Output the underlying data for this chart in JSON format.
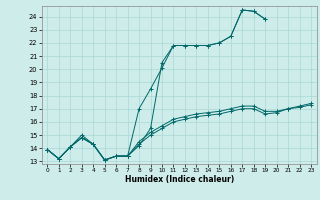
{
  "xlabel": "Humidex (Indice chaleur)",
  "bg_color": "#ceecea",
  "grid_color": "#aad8d5",
  "line_color": "#006868",
  "xlim": [
    -0.5,
    23.5
  ],
  "ylim": [
    12.8,
    24.8
  ],
  "yticks": [
    13,
    14,
    15,
    16,
    17,
    18,
    19,
    20,
    21,
    22,
    23,
    24
  ],
  "xticks": [
    0,
    1,
    2,
    3,
    4,
    5,
    6,
    7,
    8,
    9,
    10,
    11,
    12,
    13,
    14,
    15,
    16,
    17,
    18,
    19,
    20,
    21,
    22,
    23
  ],
  "series": [
    {
      "x": [
        0,
        1,
        2,
        3,
        4,
        5,
        6,
        7,
        8,
        9,
        10,
        11,
        12,
        13,
        14,
        15,
        16,
        17,
        18,
        19,
        20,
        21,
        22,
        23
      ],
      "y": [
        13.9,
        13.2,
        14.1,
        14.8,
        14.3,
        13.1,
        13.4,
        13.4,
        14.3,
        15.0,
        15.5,
        16.0,
        16.2,
        16.4,
        16.5,
        16.6,
        16.8,
        17.0,
        17.0,
        16.6,
        16.7,
        17.0,
        17.1,
        17.3
      ]
    },
    {
      "x": [
        0,
        1,
        2,
        3,
        4,
        5,
        6,
        7,
        8,
        9,
        10,
        11,
        12,
        13,
        14,
        15,
        16,
        17,
        18,
        19,
        20,
        21,
        22,
        23
      ],
      "y": [
        13.9,
        13.2,
        14.1,
        14.8,
        14.3,
        13.1,
        13.4,
        13.4,
        14.5,
        15.2,
        15.7,
        16.2,
        16.4,
        16.6,
        16.7,
        16.8,
        17.0,
        17.2,
        17.2,
        16.8,
        16.8,
        17.0,
        17.2,
        17.4
      ]
    },
    {
      "x": [
        0,
        1,
        2,
        3,
        4,
        5,
        6,
        7,
        8,
        9,
        10,
        11,
        12,
        13,
        14,
        15,
        16,
        17,
        18,
        19
      ],
      "y": [
        13.9,
        13.2,
        14.1,
        14.8,
        14.3,
        13.1,
        13.4,
        13.4,
        17.0,
        18.5,
        20.1,
        21.8,
        21.8,
        21.8,
        21.8,
        22.0,
        22.5,
        24.5,
        24.4,
        23.8
      ]
    },
    {
      "x": [
        0,
        1,
        2,
        3,
        4,
        5,
        6,
        7,
        8,
        9,
        10,
        11,
        12,
        13,
        14,
        15,
        16,
        17,
        18,
        19
      ],
      "y": [
        13.9,
        13.2,
        14.1,
        15.0,
        14.3,
        13.1,
        13.4,
        13.4,
        14.2,
        15.5,
        20.5,
        21.8,
        21.8,
        21.8,
        21.8,
        22.0,
        22.5,
        24.5,
        24.4,
        23.8
      ]
    }
  ]
}
